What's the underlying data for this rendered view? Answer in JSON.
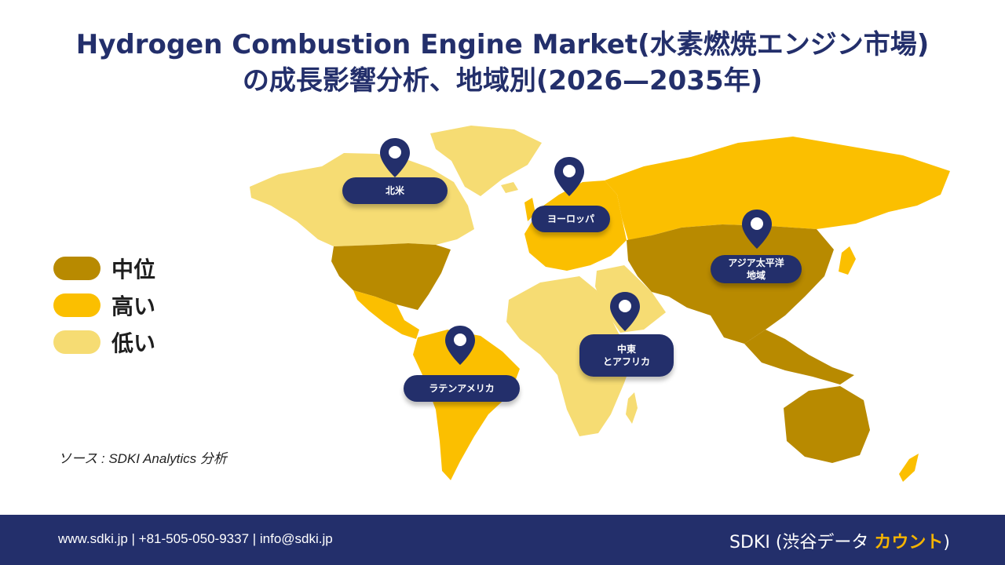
{
  "title": {
    "line1": "Hydrogen Combustion Engine Market(水素燃焼エンジン市場)",
    "line2": "の成長影響分析、地域別(2026—2035年)"
  },
  "legend": [
    {
      "label": "中位",
      "color": "#b88a00"
    },
    {
      "label": "高い",
      "color": "#fbbf00"
    },
    {
      "label": "低い",
      "color": "#f6dc73"
    }
  ],
  "regions": {
    "north_america": "北米",
    "europe": "ヨーロッパ",
    "asia_pacific": "アジア太平洋\n地域",
    "middle_east_africa": "中東\nとアフリカ",
    "latin_america": "ラテンアメリカ"
  },
  "source": "ソース : SDKI Analytics 分析",
  "footer": {
    "contact": "www.sdki.jp | +81-505-050-9337 | info@sdki.jp",
    "brand_prefix": "SDKI (渋谷データ ",
    "brand_accent": "カウント",
    "brand_suffix": ")"
  },
  "colors": {
    "navy": "#232f6b",
    "medium": "#b88a00",
    "high": "#fbbf00",
    "low": "#f6dc73",
    "accent": "#f5b400"
  }
}
